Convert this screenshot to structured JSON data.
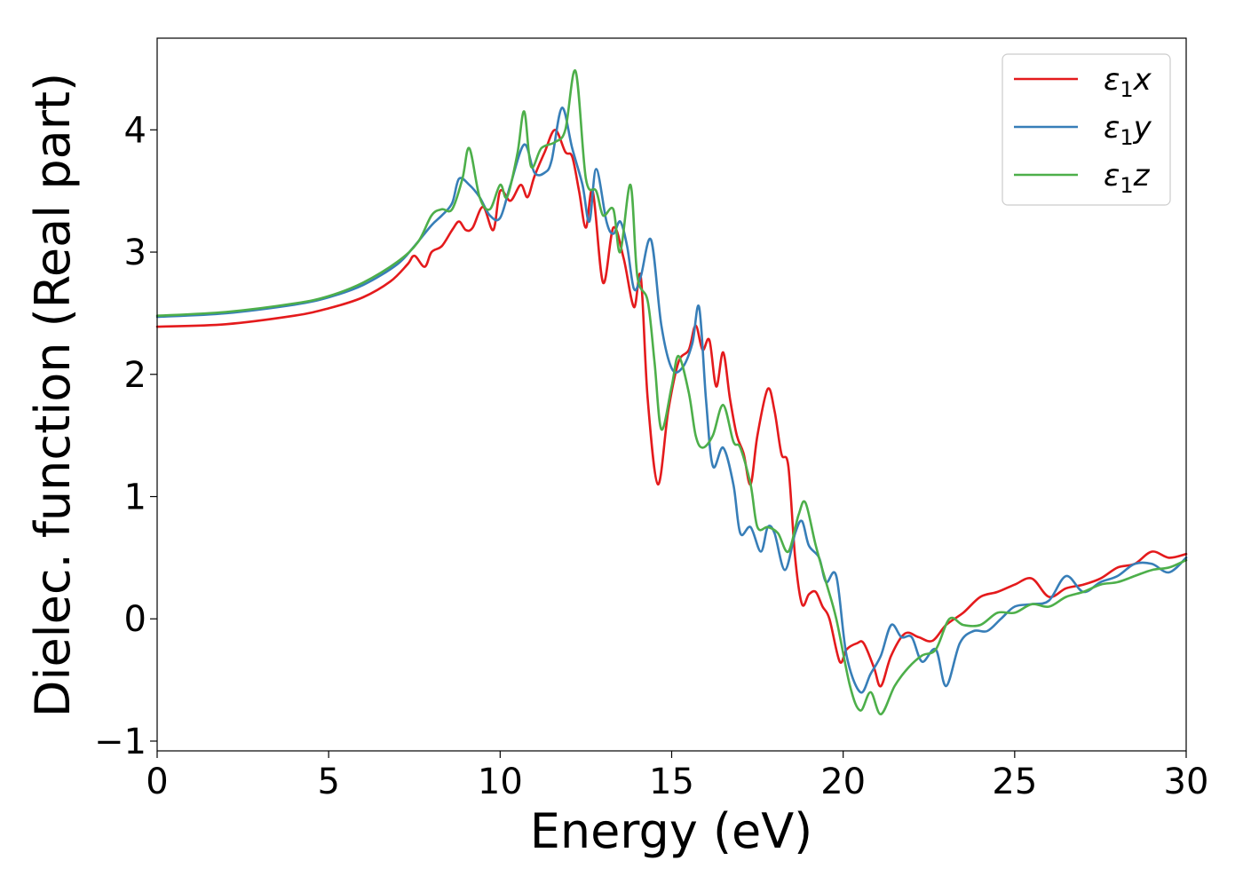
{
  "chart_data": {
    "type": "line",
    "title": "",
    "xlabel": "Energy (eV)",
    "ylabel": "Dielec. function (Real part)",
    "xlim": [
      0,
      30
    ],
    "ylim": [
      -1.08,
      4.75
    ],
    "x_ticks": [
      0,
      5,
      10,
      15,
      20,
      25,
      30
    ],
    "x_tick_labels": [
      "0",
      "5",
      "10",
      "15",
      "20",
      "25",
      "30"
    ],
    "y_ticks": [
      -1,
      0,
      1,
      2,
      3,
      4
    ],
    "y_tick_labels": [
      "−1",
      "0",
      "1",
      "2",
      "3",
      "4"
    ],
    "grid": false,
    "legend_position": "top-right",
    "series": [
      {
        "name": "ε₁x",
        "legend_main": "ε",
        "legend_sub": "1",
        "legend_var": "x",
        "color": "#e41a1c",
        "points": [
          [
            0,
            2.39
          ],
          [
            2,
            2.41
          ],
          [
            4,
            2.48
          ],
          [
            5,
            2.54
          ],
          [
            6,
            2.63
          ],
          [
            6.8,
            2.76
          ],
          [
            7.3,
            2.9
          ],
          [
            7.5,
            2.97
          ],
          [
            7.8,
            2.88
          ],
          [
            8,
            3.0
          ],
          [
            8.3,
            3.05
          ],
          [
            8.6,
            3.18
          ],
          [
            8.8,
            3.25
          ],
          [
            9.0,
            3.18
          ],
          [
            9.2,
            3.2
          ],
          [
            9.5,
            3.37
          ],
          [
            9.8,
            3.18
          ],
          [
            10.0,
            3.5
          ],
          [
            10.3,
            3.42
          ],
          [
            10.6,
            3.55
          ],
          [
            10.8,
            3.45
          ],
          [
            11.0,
            3.62
          ],
          [
            11.3,
            3.82
          ],
          [
            11.6,
            4.0
          ],
          [
            11.9,
            3.82
          ],
          [
            12.1,
            3.78
          ],
          [
            12.3,
            3.5
          ],
          [
            12.5,
            3.2
          ],
          [
            12.7,
            3.5
          ],
          [
            13.0,
            2.75
          ],
          [
            13.3,
            3.2
          ],
          [
            13.6,
            2.95
          ],
          [
            13.9,
            2.55
          ],
          [
            14.1,
            2.8
          ],
          [
            14.3,
            1.8
          ],
          [
            14.6,
            1.1
          ],
          [
            14.9,
            1.7
          ],
          [
            15.2,
            2.1
          ],
          [
            15.5,
            2.2
          ],
          [
            15.7,
            2.4
          ],
          [
            15.9,
            2.2
          ],
          [
            16.1,
            2.28
          ],
          [
            16.3,
            1.9
          ],
          [
            16.5,
            2.18
          ],
          [
            16.7,
            1.8
          ],
          [
            16.9,
            1.5
          ],
          [
            17.1,
            1.35
          ],
          [
            17.3,
            1.1
          ],
          [
            17.5,
            1.5
          ],
          [
            17.8,
            1.88
          ],
          [
            18.0,
            1.7
          ],
          [
            18.2,
            1.35
          ],
          [
            18.4,
            1.25
          ],
          [
            18.6,
            0.5
          ],
          [
            18.8,
            0.12
          ],
          [
            19.0,
            0.2
          ],
          [
            19.2,
            0.22
          ],
          [
            19.4,
            0.1
          ],
          [
            19.6,
            0.0
          ],
          [
            19.9,
            -0.35
          ],
          [
            20.1,
            -0.25
          ],
          [
            20.4,
            -0.2
          ],
          [
            20.6,
            -0.2
          ],
          [
            20.9,
            -0.4
          ],
          [
            21.1,
            -0.55
          ],
          [
            21.4,
            -0.3
          ],
          [
            21.8,
            -0.12
          ],
          [
            22.2,
            -0.15
          ],
          [
            22.6,
            -0.18
          ],
          [
            23.0,
            -0.05
          ],
          [
            23.5,
            0.05
          ],
          [
            24.0,
            0.18
          ],
          [
            24.5,
            0.22
          ],
          [
            25.0,
            0.28
          ],
          [
            25.5,
            0.33
          ],
          [
            26.0,
            0.18
          ],
          [
            26.5,
            0.25
          ],
          [
            27.0,
            0.28
          ],
          [
            27.5,
            0.33
          ],
          [
            28.0,
            0.42
          ],
          [
            28.5,
            0.45
          ],
          [
            29.0,
            0.55
          ],
          [
            29.5,
            0.5
          ],
          [
            30.0,
            0.53
          ]
        ]
      },
      {
        "name": "ε₁y",
        "legend_main": "ε",
        "legend_sub": "1",
        "legend_var": "y",
        "color": "#377eb8",
        "points": [
          [
            0,
            2.47
          ],
          [
            2,
            2.5
          ],
          [
            4,
            2.57
          ],
          [
            5,
            2.63
          ],
          [
            6,
            2.73
          ],
          [
            7,
            2.9
          ],
          [
            7.5,
            3.05
          ],
          [
            8.0,
            3.22
          ],
          [
            8.3,
            3.3
          ],
          [
            8.6,
            3.4
          ],
          [
            8.8,
            3.6
          ],
          [
            9.1,
            3.55
          ],
          [
            9.4,
            3.45
          ],
          [
            9.7,
            3.3
          ],
          [
            10.0,
            3.28
          ],
          [
            10.3,
            3.55
          ],
          [
            10.7,
            3.88
          ],
          [
            11.0,
            3.65
          ],
          [
            11.3,
            3.65
          ],
          [
            11.5,
            3.75
          ],
          [
            11.8,
            4.18
          ],
          [
            12.1,
            3.85
          ],
          [
            12.4,
            3.55
          ],
          [
            12.6,
            3.25
          ],
          [
            12.8,
            3.68
          ],
          [
            13.1,
            3.25
          ],
          [
            13.3,
            3.15
          ],
          [
            13.5,
            3.25
          ],
          [
            13.7,
            3.05
          ],
          [
            13.9,
            2.7
          ],
          [
            14.1,
            2.8
          ],
          [
            14.4,
            3.1
          ],
          [
            14.7,
            2.4
          ],
          [
            15.0,
            2.05
          ],
          [
            15.3,
            2.05
          ],
          [
            15.6,
            2.25
          ],
          [
            15.8,
            2.55
          ],
          [
            16.0,
            1.8
          ],
          [
            16.2,
            1.25
          ],
          [
            16.5,
            1.4
          ],
          [
            16.8,
            1.1
          ],
          [
            17.0,
            0.7
          ],
          [
            17.3,
            0.75
          ],
          [
            17.6,
            0.55
          ],
          [
            17.8,
            0.75
          ],
          [
            18.0,
            0.7
          ],
          [
            18.3,
            0.4
          ],
          [
            18.6,
            0.7
          ],
          [
            18.8,
            0.8
          ],
          [
            19.0,
            0.6
          ],
          [
            19.3,
            0.5
          ],
          [
            19.5,
            0.3
          ],
          [
            19.8,
            0.35
          ],
          [
            20.1,
            -0.3
          ],
          [
            20.5,
            -0.6
          ],
          [
            20.8,
            -0.45
          ],
          [
            21.1,
            -0.3
          ],
          [
            21.4,
            -0.05
          ],
          [
            21.7,
            -0.15
          ],
          [
            22.0,
            -0.15
          ],
          [
            22.3,
            -0.35
          ],
          [
            22.7,
            -0.25
          ],
          [
            23.0,
            -0.55
          ],
          [
            23.4,
            -0.2
          ],
          [
            23.8,
            -0.1
          ],
          [
            24.2,
            -0.1
          ],
          [
            24.6,
            0.0
          ],
          [
            25.0,
            0.1
          ],
          [
            25.5,
            0.12
          ],
          [
            26.0,
            0.15
          ],
          [
            26.5,
            0.35
          ],
          [
            27.0,
            0.22
          ],
          [
            27.5,
            0.3
          ],
          [
            28.0,
            0.35
          ],
          [
            28.5,
            0.45
          ],
          [
            29.0,
            0.45
          ],
          [
            29.5,
            0.38
          ],
          [
            30.0,
            0.5
          ]
        ]
      },
      {
        "name": "ε₁z",
        "legend_main": "ε",
        "legend_sub": "1",
        "legend_var": "z",
        "color": "#4daf4a",
        "points": [
          [
            0,
            2.48
          ],
          [
            2,
            2.51
          ],
          [
            4,
            2.58
          ],
          [
            5,
            2.64
          ],
          [
            6,
            2.75
          ],
          [
            7,
            2.92
          ],
          [
            7.6,
            3.08
          ],
          [
            8.0,
            3.3
          ],
          [
            8.3,
            3.35
          ],
          [
            8.6,
            3.35
          ],
          [
            8.9,
            3.6
          ],
          [
            9.1,
            3.85
          ],
          [
            9.4,
            3.45
          ],
          [
            9.7,
            3.35
          ],
          [
            10.0,
            3.55
          ],
          [
            10.2,
            3.45
          ],
          [
            10.5,
            3.8
          ],
          [
            10.7,
            4.15
          ],
          [
            10.9,
            3.7
          ],
          [
            11.2,
            3.85
          ],
          [
            11.6,
            3.9
          ],
          [
            11.9,
            4.0
          ],
          [
            12.2,
            4.48
          ],
          [
            12.5,
            3.6
          ],
          [
            12.8,
            3.5
          ],
          [
            13.0,
            3.3
          ],
          [
            13.3,
            3.35
          ],
          [
            13.5,
            3.0
          ],
          [
            13.8,
            3.55
          ],
          [
            14.0,
            2.8
          ],
          [
            14.3,
            2.6
          ],
          [
            14.5,
            2.1
          ],
          [
            14.7,
            1.55
          ],
          [
            15.0,
            1.9
          ],
          [
            15.2,
            2.15
          ],
          [
            15.5,
            1.85
          ],
          [
            15.7,
            1.5
          ],
          [
            15.9,
            1.4
          ],
          [
            16.2,
            1.5
          ],
          [
            16.5,
            1.75
          ],
          [
            16.8,
            1.45
          ],
          [
            17.0,
            1.4
          ],
          [
            17.3,
            1.1
          ],
          [
            17.5,
            0.75
          ],
          [
            17.8,
            0.75
          ],
          [
            18.1,
            0.7
          ],
          [
            18.4,
            0.55
          ],
          [
            18.7,
            0.85
          ],
          [
            18.9,
            0.95
          ],
          [
            19.2,
            0.6
          ],
          [
            19.5,
            0.3
          ],
          [
            19.8,
            0.0
          ],
          [
            20.2,
            -0.55
          ],
          [
            20.5,
            -0.75
          ],
          [
            20.8,
            -0.6
          ],
          [
            21.1,
            -0.78
          ],
          [
            21.5,
            -0.55
          ],
          [
            21.9,
            -0.4
          ],
          [
            22.3,
            -0.3
          ],
          [
            22.7,
            -0.25
          ],
          [
            23.1,
            0.0
          ],
          [
            23.5,
            -0.05
          ],
          [
            24.0,
            -0.05
          ],
          [
            24.5,
            0.05
          ],
          [
            25.0,
            0.05
          ],
          [
            25.5,
            0.12
          ],
          [
            26.0,
            0.1
          ],
          [
            26.5,
            0.18
          ],
          [
            27.0,
            0.22
          ],
          [
            27.5,
            0.28
          ],
          [
            28.0,
            0.3
          ],
          [
            28.5,
            0.35
          ],
          [
            29.0,
            0.4
          ],
          [
            29.5,
            0.42
          ],
          [
            30.0,
            0.48
          ]
        ]
      }
    ]
  }
}
